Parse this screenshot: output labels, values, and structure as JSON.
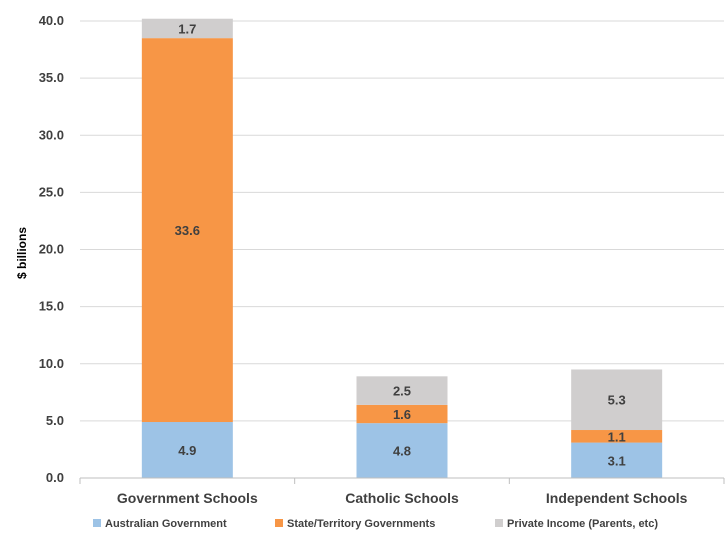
{
  "chart_data": {
    "type": "bar",
    "stacked": true,
    "title": "",
    "xlabel": "",
    "ylabel": "$ billions",
    "ylim": [
      0,
      40
    ],
    "yticks": [
      "0.0",
      "5.0",
      "10.0",
      "15.0",
      "20.0",
      "25.0",
      "30.0",
      "35.0",
      "40.0"
    ],
    "grid": true,
    "legend_position": "bottom",
    "categories": [
      "Government Schools",
      "Catholic Schools",
      "Independent Schools"
    ],
    "series": [
      {
        "name": "Australian Government",
        "color": "#9dc3e6",
        "values": [
          4.9,
          4.8,
          3.1
        ],
        "labels": [
          "4.9",
          "4.8",
          "3.1"
        ]
      },
      {
        "name": "State/Territory Governments",
        "color": "#f79646",
        "values": [
          33.6,
          1.6,
          1.1
        ],
        "labels": [
          "33.6",
          "1.6",
          "1.1"
        ]
      },
      {
        "name": "Private Income (Parents, etc)",
        "color": "#d0cece",
        "values": [
          1.7,
          2.5,
          5.3
        ],
        "labels": [
          "1.7",
          "2.5",
          "5.3"
        ]
      }
    ]
  }
}
